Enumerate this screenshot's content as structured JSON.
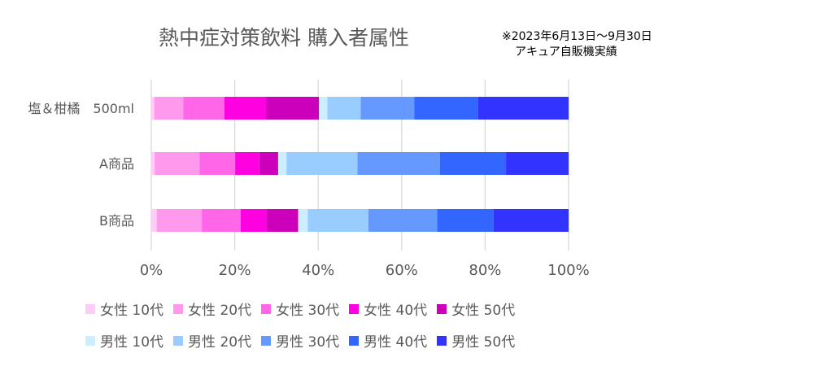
{
  "chart_data": {
    "type": "bar",
    "orientation": "horizontal",
    "stacked": "percent",
    "title": "熱中症対策飲料 購入者属性",
    "note": [
      "※2023年6月13日～9月30日",
      "アキュア自販機実績"
    ],
    "categories": [
      "塩＆柑橘　500ml",
      "A商品",
      "B商品"
    ],
    "x_ticks": [
      "0%",
      "20%",
      "40%",
      "60%",
      "80%",
      "100%"
    ],
    "xlim": [
      0,
      100
    ],
    "grid": true,
    "legend_position": "bottom",
    "series": [
      {
        "name": "女性 10代",
        "color": "#ffccf5",
        "values": [
          0.7,
          0.8,
          1.3
        ]
      },
      {
        "name": "女性 20代",
        "color": "#ff99ee",
        "values": [
          7.0,
          10.8,
          10.8
        ]
      },
      {
        "name": "女性 30代",
        "color": "#ff66e8",
        "values": [
          9.8,
          8.5,
          9.3
        ]
      },
      {
        "name": "女性 40代",
        "color": "#ff00e0",
        "values": [
          10.0,
          5.8,
          6.3
        ]
      },
      {
        "name": "女性 50代",
        "color": "#cc00bb",
        "values": [
          12.7,
          4.5,
          7.5
        ]
      },
      {
        "name": "男性 10代",
        "color": "#cceeff",
        "values": [
          2.0,
          2.0,
          2.3
        ]
      },
      {
        "name": "男性 20代",
        "color": "#99ccff",
        "values": [
          8.0,
          17.0,
          14.5
        ]
      },
      {
        "name": "男性 30代",
        "color": "#6699ff",
        "values": [
          12.8,
          19.8,
          16.5
        ]
      },
      {
        "name": "男性 40代",
        "color": "#3366ff",
        "values": [
          15.3,
          15.8,
          13.5
        ]
      },
      {
        "name": "男性 50代",
        "color": "#3333ff",
        "values": [
          21.7,
          15.0,
          18.0
        ]
      }
    ]
  }
}
